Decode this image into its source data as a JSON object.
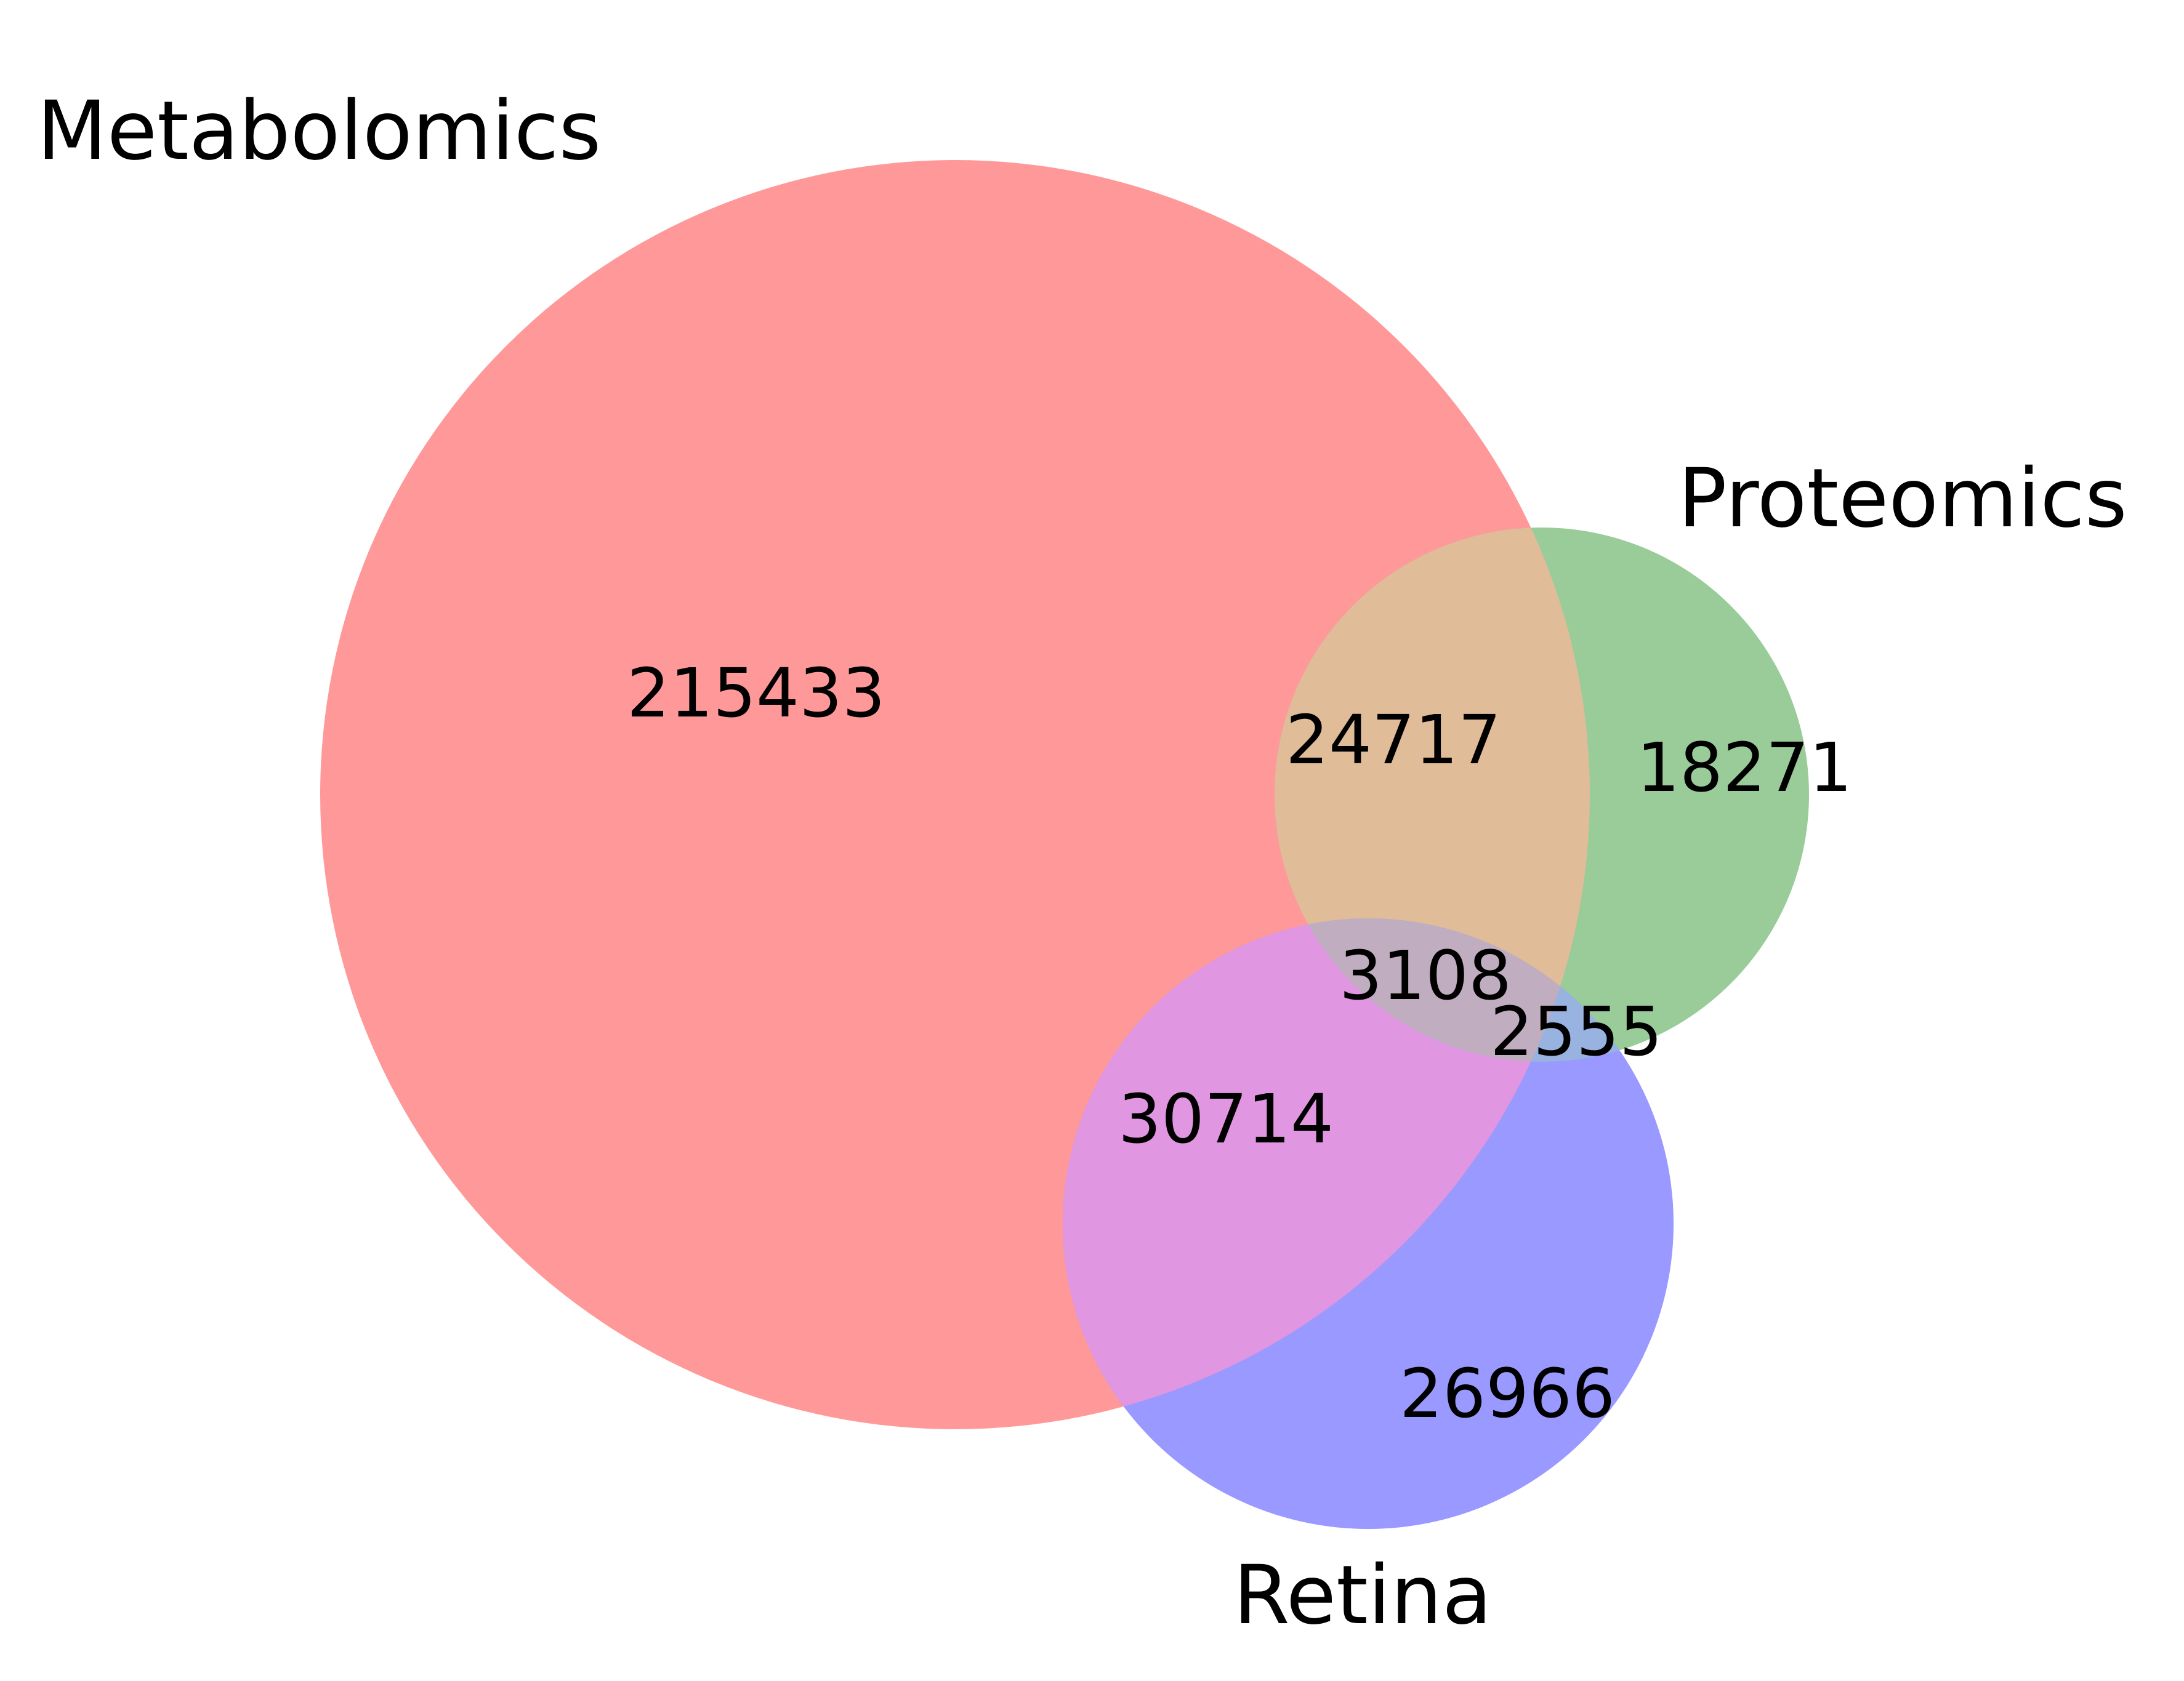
{
  "diagram": {
    "type": "venn3",
    "sets": [
      {
        "key": "metabolomics",
        "label": "Metabolomics",
        "color": "#ff9999"
      },
      {
        "key": "proteomics",
        "label": "Proteomics",
        "color": "#99cc99"
      },
      {
        "key": "retina",
        "label": "Retina",
        "color": "#9999ff"
      }
    ],
    "regions": {
      "metabolomics_only": "215433",
      "proteomics_only": "18271",
      "retina_only": "26966",
      "metabolomics_proteomics": "24717",
      "metabolomics_retina": "30714",
      "proteomics_retina": "2555",
      "all_three": "3108"
    },
    "region_colors": {
      "metabolomics_proteomics": "#e0bc99",
      "metabolomics_retina": "#e096e0",
      "proteomics_retina": "#99b3e0",
      "all_three": "#c0aec0"
    }
  }
}
